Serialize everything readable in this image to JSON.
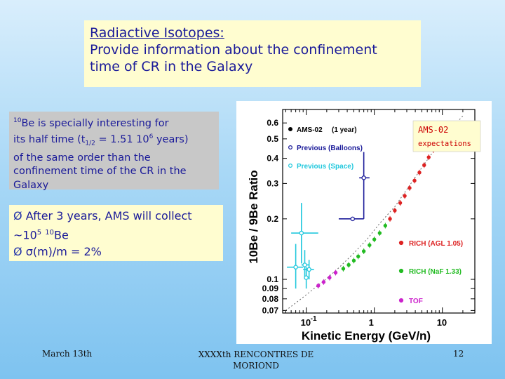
{
  "title": {
    "line1": "Radiactive Isotopes:",
    "line2": "Provide information about the confinement",
    "line3": "time of CR in the Galaxy"
  },
  "info": {
    "iso_mass": "10",
    "be_text": "Be is specially interesting for",
    "line2_pre": "its half time (t",
    "half_sub": "1/2",
    "line2_mid": " = 1.51 10",
    "half_exp": "6",
    "line2_post": " years)",
    "line3": "of the same order than the",
    "line4": "confinement time of the CR in the",
    "line5": "Galaxy"
  },
  "bullets": {
    "arrow": "Ø",
    "b1": "After 3 years, AMS will collect",
    "b1b_pre": "~10",
    "b1b_exp": "5",
    "b1b_mass": "10",
    "b1b_post": "Be",
    "b2_sigma": "σ",
    "b2_post": "(m)/m = 2%"
  },
  "footer": {
    "left": "March 13th",
    "center_l1": "XXXXth RENCONTRES DE",
    "center_l2": "MORIOND",
    "page": "12"
  },
  "colors": {
    "ams_black": "#000000",
    "previous_balloons": "#1a1a99",
    "previous_space": "#22c8dd",
    "rich_agl": "#dd2222",
    "rich_naf": "#22bb22",
    "tof": "#cc22cc",
    "ams02_label": "#cc0000"
  },
  "chart_data": {
    "type": "scatter",
    "xlabel": "Kinetic Energy (GeV/n)",
    "ylabel": "10Be / 9Be Ratio",
    "xscale": "log",
    "yscale": "log",
    "xlim": [
      0.045,
      30
    ],
    "ylim": [
      0.068,
      0.7
    ],
    "x_ticks": [
      {
        "v": 0.1,
        "base": "10",
        "exp": "-1"
      },
      {
        "v": 1,
        "base": "1",
        "exp": ""
      },
      {
        "v": 10,
        "base": "10",
        "exp": ""
      }
    ],
    "y_ticks": [
      {
        "v": 0.07,
        "label": "0.07"
      },
      {
        "v": 0.08,
        "label": "0.08"
      },
      {
        "v": 0.09,
        "label": "0.09"
      },
      {
        "v": 0.1,
        "label": "0.1"
      },
      {
        "v": 0.2,
        "label": "0.2"
      },
      {
        "v": 0.3,
        "label": "0.3"
      },
      {
        "v": 0.4,
        "label": "0.4"
      },
      {
        "v": 0.5,
        "label": "0.5"
      },
      {
        "v": 0.6,
        "label": "0.6"
      }
    ],
    "legend_top": [
      {
        "marker": "filled",
        "color": "#000000",
        "label": "AMS-02",
        "extra": "(1 year)"
      },
      {
        "marker": "open",
        "color": "#1a1a99",
        "label": "Previous (Balloons)",
        "extra": ""
      },
      {
        "marker": "open",
        "color": "#22c8dd",
        "label": "Previous (Space)",
        "extra": ""
      }
    ],
    "legend_right": [
      {
        "color": "#dd2222",
        "label": "RICH (AGL 1.05)"
      },
      {
        "color": "#22bb22",
        "label": "RICH (NaF 1.33)"
      },
      {
        "color": "#cc22cc",
        "label": "TOF"
      }
    ],
    "annotation": {
      "line1": "AMS-02",
      "line2": "expectations"
    },
    "expectation_curve": {
      "x": [
        0.05,
        0.08,
        0.12,
        0.2,
        0.3,
        0.5,
        0.8,
        1.2,
        2,
        3,
        5,
        8,
        12,
        20
      ],
      "y": [
        0.07,
        0.079,
        0.088,
        0.101,
        0.114,
        0.135,
        0.16,
        0.19,
        0.23,
        0.28,
        0.36,
        0.45,
        0.54,
        0.65
      ]
    },
    "series": [
      {
        "name": "Previous (Balloons)",
        "color": "#1a1a99",
        "points": [
          {
            "x": 0.48,
            "y": 0.2,
            "xlo": 0.3,
            "xhi": 0.7,
            "ylo": 0.2,
            "yhi": 0.2
          },
          {
            "x": 0.7,
            "y": 0.32,
            "xlo": 0.6,
            "xhi": 0.85,
            "ylo": 0.2,
            "yhi": 0.43
          }
        ]
      },
      {
        "name": "Previous (Space)",
        "color": "#22c8dd",
        "points": [
          {
            "x": 0.07,
            "y": 0.115,
            "xlo": 0.052,
            "xhi": 0.09,
            "ylo": 0.09,
            "yhi": 0.15
          },
          {
            "x": 0.085,
            "y": 0.17,
            "xlo": 0.06,
            "xhi": 0.15,
            "ylo": 0.12,
            "yhi": 0.24
          },
          {
            "x": 0.095,
            "y": 0.118,
            "xlo": 0.085,
            "xhi": 0.11,
            "ylo": 0.1,
            "yhi": 0.14
          },
          {
            "x": 0.11,
            "y": 0.112,
            "xlo": 0.09,
            "xhi": 0.13,
            "ylo": 0.1,
            "yhi": 0.125
          },
          {
            "x": 0.1,
            "y": 0.102,
            "xlo": 0.095,
            "xhi": 0.105,
            "ylo": 0.09,
            "yhi": 0.115
          }
        ]
      },
      {
        "name": "TOF",
        "color": "#cc22cc",
        "points": [
          {
            "x": 0.15,
            "y": 0.093
          },
          {
            "x": 0.18,
            "y": 0.097
          },
          {
            "x": 0.22,
            "y": 0.102
          },
          {
            "x": 0.27,
            "y": 0.108
          }
        ]
      },
      {
        "name": "RICH (NaF 1.33)",
        "color": "#22bb22",
        "points": [
          {
            "x": 0.35,
            "y": 0.113
          },
          {
            "x": 0.42,
            "y": 0.118
          },
          {
            "x": 0.5,
            "y": 0.124
          },
          {
            "x": 0.58,
            "y": 0.13
          },
          {
            "x": 0.7,
            "y": 0.138
          },
          {
            "x": 0.85,
            "y": 0.148
          },
          {
            "x": 1.0,
            "y": 0.158
          },
          {
            "x": 1.2,
            "y": 0.17
          },
          {
            "x": 1.45,
            "y": 0.185
          }
        ]
      },
      {
        "name": "RICH (AGL 1.05)",
        "color": "#dd2222",
        "points": [
          {
            "x": 1.7,
            "y": 0.2
          },
          {
            "x": 2.0,
            "y": 0.22
          },
          {
            "x": 2.4,
            "y": 0.24
          },
          {
            "x": 2.8,
            "y": 0.26
          },
          {
            "x": 3.3,
            "y": 0.285
          },
          {
            "x": 3.9,
            "y": 0.31
          },
          {
            "x": 4.6,
            "y": 0.34
          },
          {
            "x": 5.4,
            "y": 0.37
          },
          {
            "x": 6.3,
            "y": 0.405
          },
          {
            "x": 7.4,
            "y": 0.44
          },
          {
            "x": 8.7,
            "y": 0.48
          }
        ]
      }
    ]
  }
}
